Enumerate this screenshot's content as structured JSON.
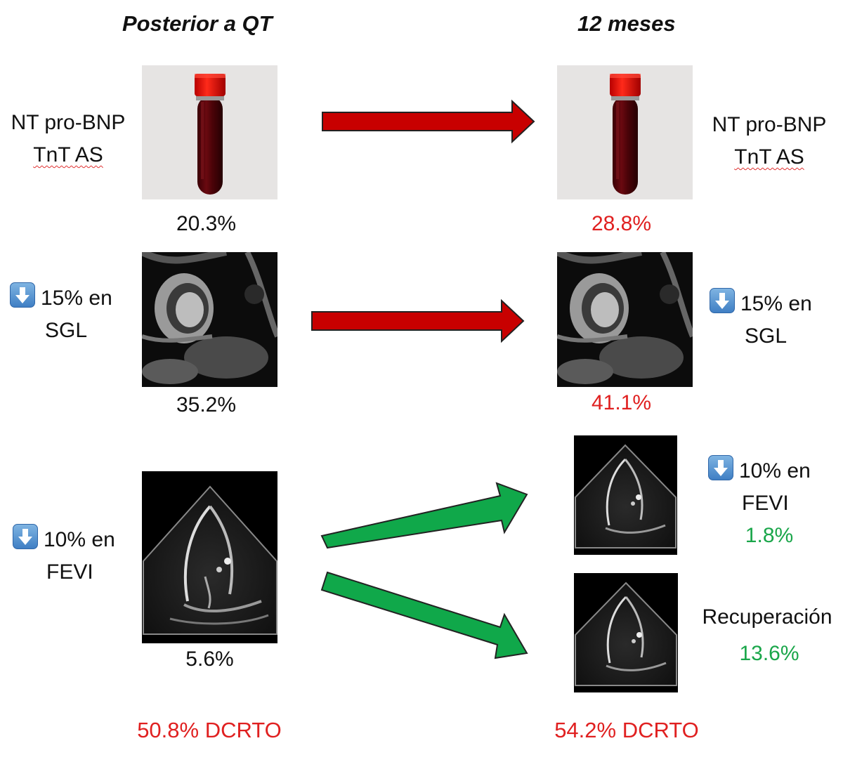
{
  "headers": {
    "left": "Posterior a QT",
    "right": "12 meses"
  },
  "rows": {
    "biomarkers": {
      "left_lines": [
        "NT pro-BNP",
        "TnT AS"
      ],
      "right_lines": [
        "NT pro-BNP",
        "TnT AS"
      ],
      "left_pct": "20.3%",
      "right_pct": "28.8%",
      "arrow_color": "#c80000",
      "image_left": "blood-tube",
      "image_right": "blood-tube"
    },
    "sgl": {
      "left_line1": "15% en",
      "left_line2": "SGL",
      "right_line1": "15% en",
      "right_line2": "SGL",
      "left_pct": "35.2%",
      "right_pct": "41.1%",
      "arrow_color": "#c80000",
      "image_left": "cardiac-mri",
      "image_right": "cardiac-mri"
    },
    "fevi": {
      "left_line1": "10% en",
      "left_line2": "FEVI",
      "left_pct": "5.6%",
      "right_top_line1": "10% en",
      "right_top_line2": "FEVI",
      "right_top_pct": "1.8%",
      "right_bottom_label": "Recuperación",
      "right_bottom_pct": "13.6%",
      "arrow_color": "#10a84a",
      "image_left": "echocardiogram",
      "image_right": "echocardiogram"
    }
  },
  "footer": {
    "left": "50.8% DCRTO",
    "right": "54.2% DCRTO"
  },
  "colors": {
    "worse": "#e02020",
    "better": "#1aa64a",
    "neutral": "#111111",
    "red_arrow": "#c80000",
    "green_arrow": "#10a84a"
  }
}
